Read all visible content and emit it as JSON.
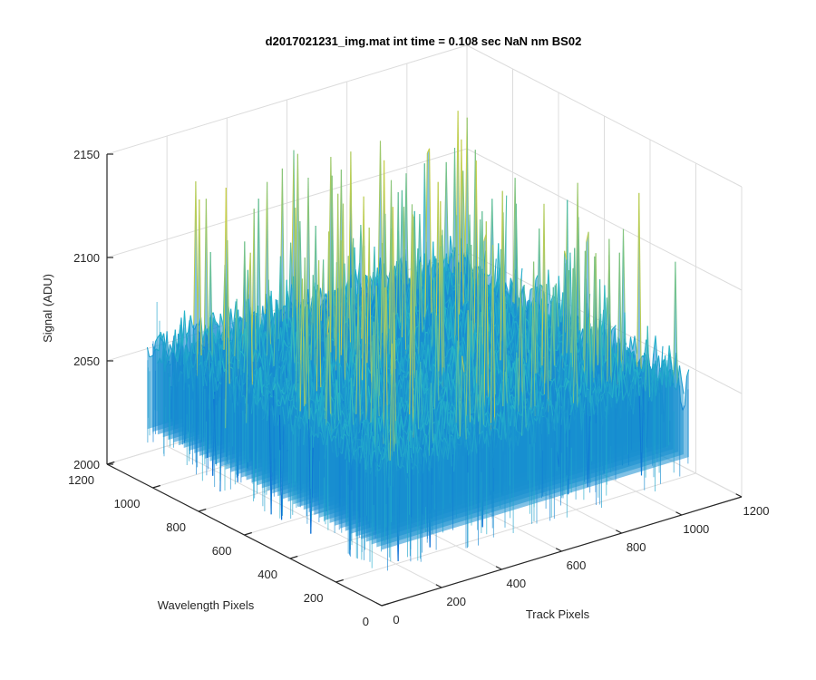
{
  "chart_data": {
    "type": "surface",
    "title": "d2017021231_img.mat int time = 0.108 sec  NaN nm BS02",
    "xlabel": "Track Pixels",
    "ylabel": "Wavelength Pixels",
    "zlabel": "Signal (ADU)",
    "xlim": [
      0,
      1200
    ],
    "ylim": [
      0,
      1200
    ],
    "zlim": [
      2000,
      2150
    ],
    "xticks": [
      "0",
      "200",
      "400",
      "600",
      "800",
      "1000",
      "1200"
    ],
    "yticks": [
      "0",
      "200",
      "400",
      "600",
      "800",
      "1000",
      "1200"
    ],
    "zticks": [
      "2000",
      "2050",
      "2100",
      "2150"
    ],
    "grid": true,
    "colormap": "parula",
    "data_extent": {
      "x": [
        0,
        1024
      ],
      "y": [
        0,
        1024
      ]
    },
    "signal_summary": {
      "baseline_mean": 2065,
      "noise_peak_max": 2150,
      "noise_floor_min": 2015
    }
  },
  "colors": {
    "grid": "#dcdcdc",
    "axis": "#262626",
    "surface_low": "#0c6fd6",
    "surface_mid": "#27b6c8",
    "surface_high": "#c8cf4a"
  }
}
